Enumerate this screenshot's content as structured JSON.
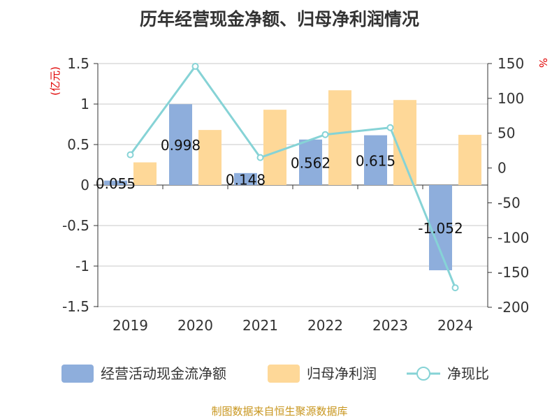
{
  "title": "历年经营现金净额、归母净利润情况",
  "footer": "制图数据来自恒生聚源数据库",
  "chart_data": {
    "type": "bar",
    "categories": [
      "2019",
      "2020",
      "2021",
      "2022",
      "2023",
      "2024"
    ],
    "series": [
      {
        "name": "经营活动现金流净额",
        "type": "bar",
        "axis": "left",
        "color": "#8eaedc",
        "values": [
          0.055,
          0.998,
          0.148,
          0.562,
          0.615,
          -1.052
        ],
        "labels": [
          "0.055",
          "0.998",
          "0.148",
          "0.562",
          "0.615",
          "-1.052"
        ]
      },
      {
        "name": "归母净利润",
        "type": "bar",
        "axis": "left",
        "color": "#fed898",
        "values": [
          0.28,
          0.68,
          0.93,
          1.17,
          1.05,
          0.62
        ]
      },
      {
        "name": "净现比",
        "type": "line",
        "axis": "right",
        "color": "#86d3d6",
        "values": [
          19,
          146,
          15,
          48,
          58,
          -172
        ]
      }
    ],
    "left_axis": {
      "unit": "(亿元)",
      "ylim": [
        -1.5,
        1.5
      ],
      "ticks": [
        1.5,
        1,
        0.5,
        0,
        -0.5,
        -1,
        -1.5
      ],
      "tick_labels": [
        "1.5",
        "1",
        "0.5",
        "0",
        "-0.5",
        "-1",
        "-1.5"
      ]
    },
    "right_axis": {
      "unit": "%",
      "ylim": [
        -200,
        150
      ],
      "ticks": [
        150,
        100,
        50,
        0,
        -50,
        -100,
        -150,
        -200
      ],
      "tick_labels": [
        "150",
        "100",
        "50",
        "0",
        "-50",
        "-100",
        "-150",
        "-200"
      ]
    },
    "grid": true,
    "legend_position": "bottom"
  }
}
